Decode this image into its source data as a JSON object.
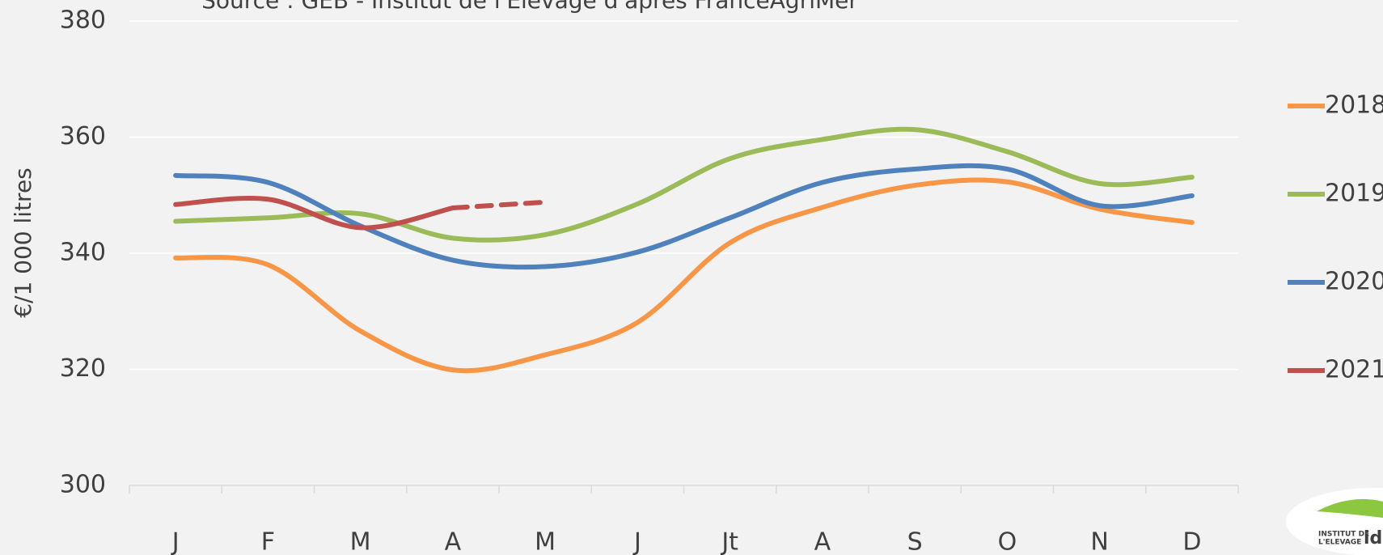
{
  "chart_data": {
    "type": "line",
    "subtitle": "Source : GEB - Institut de l'Elevage d'après FranceAgriMer",
    "y_label": "€/1 000 litres",
    "logo": [
      "INSTITUT DE",
      "L'ELEVAGE",
      "ide"
    ],
    "categories": [
      "J",
      "F",
      "M",
      "A",
      "M",
      "J",
      "Jt",
      "A",
      "S",
      "O",
      "N",
      "D"
    ],
    "ylim": [
      300,
      380
    ],
    "yticks": [
      300,
      320,
      340,
      360,
      380
    ],
    "grid": true,
    "legend": "right",
    "series": [
      {
        "name": "2018",
        "color": "#f79646",
        "values": [
          339.2,
          338,
          326.6,
          319.9,
          322.5,
          328.1,
          341.8,
          347.9,
          351.7,
          352.3,
          347.6,
          345.3
        ]
      },
      {
        "name": "2019",
        "color": "#9bbb59",
        "values": [
          345.5,
          346.1,
          346.8,
          342.6,
          343.2,
          348.5,
          356.3,
          359.6,
          361.3,
          357.5,
          352.0,
          353.1
        ]
      },
      {
        "name": "2020",
        "color": "#4f81bd",
        "values": [
          353.4,
          352.2,
          344.7,
          338.8,
          337.7,
          340.2,
          346.1,
          352.2,
          354.5,
          354.5,
          348.2,
          349.9
        ]
      },
      {
        "name": "2021",
        "color": "#c0504d",
        "dash_from": 3,
        "values": [
          348.4,
          349.3,
          344.4,
          347.8,
          348.8,
          null,
          null,
          null,
          null,
          null,
          null,
          null
        ]
      }
    ]
  }
}
